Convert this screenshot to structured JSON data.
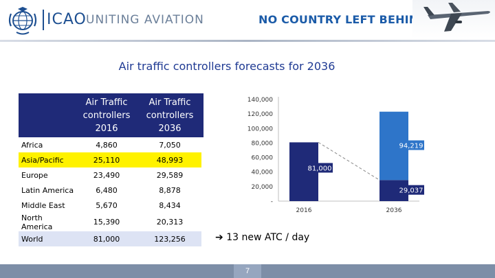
{
  "header": {
    "brand": "ICAO",
    "tagline": "UNITING AVIATION",
    "slogan": "NO COUNTRY LEFT BEHIND"
  },
  "slide": {
    "title": "Air traffic controllers forecasts for 2036",
    "note": "13 new ATC / day",
    "page_number": "7"
  },
  "table": {
    "headers": [
      "",
      "Air Traffic controllers 2016",
      "Air Traffic controllers 2036"
    ],
    "rows": [
      {
        "region": "Africa",
        "y2016": "4,860",
        "y2036": "7,050"
      },
      {
        "region": "Asia/Pacific",
        "y2016": "25,110",
        "y2036": "48,993"
      },
      {
        "region": "Europe",
        "y2016": "23,490",
        "y2036": "29,589"
      },
      {
        "region": "Latin America",
        "y2016": "6,480",
        "y2036": "8,878"
      },
      {
        "region": "Middle East",
        "y2016": "5,670",
        "y2036": "8,434"
      },
      {
        "region": "North America",
        "y2016": "15,390",
        "y2036": "20,313"
      },
      {
        "region": "World",
        "y2016": "81,000",
        "y2036": "123,256"
      }
    ],
    "highlight_color": "#fff200",
    "world_row_color": "#dde3f4",
    "header_color": "#1f2a78"
  },
  "chart_data": {
    "type": "bar",
    "stacked": true,
    "categories": [
      "2016",
      "2036"
    ],
    "series": [
      {
        "values": [
          81000,
          29037
        ],
        "color": "#1f2a78",
        "labels": [
          "81,000",
          "29,037"
        ]
      },
      {
        "values": [
          0,
          94219
        ],
        "color": "#2e75c9",
        "labels": [
          "",
          "94,219"
        ]
      }
    ],
    "ylim": [
      0,
      140000
    ],
    "yticks": [
      0,
      20000,
      40000,
      60000,
      80000,
      100000,
      120000,
      140000
    ],
    "ytick_labels": [
      "-",
      "20,000",
      "40,000",
      "60,000",
      "80,000",
      "100,000",
      "120,000",
      "140,000"
    ],
    "grid": false,
    "connector_line": "dashed"
  }
}
